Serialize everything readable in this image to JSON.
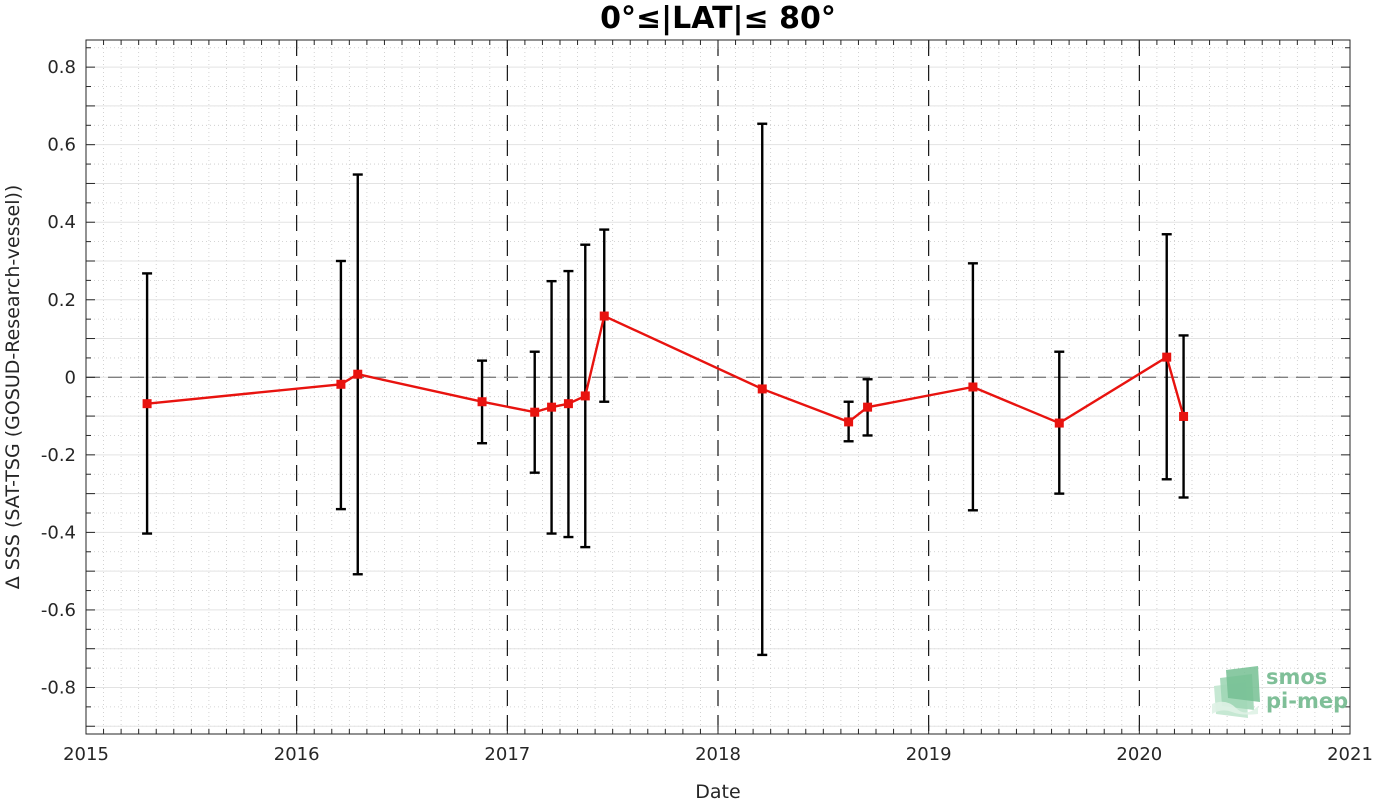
{
  "chart_data": {
    "type": "line",
    "title": "0°≤|LAT|≤ 80°",
    "xlabel": "Date",
    "ylabel": "Δ SSS (SAT-TSG (GOSUD-Research-vessel))",
    "xlim": [
      2015,
      2021
    ],
    "ylim": [
      -0.92,
      0.87
    ],
    "xticks": [
      "2015",
      "2016",
      "2017",
      "2018",
      "2019",
      "2020",
      "2021"
    ],
    "yticks": [
      "0.8",
      "0.6",
      "0.4",
      "0.2",
      "0",
      "-0.2",
      "-0.4",
      "-0.6",
      "-0.8"
    ],
    "grid": true,
    "reference_line": 0,
    "year_separators": [
      2016,
      2017,
      2018,
      2019,
      2020
    ],
    "series": [
      {
        "color": "#e8130f",
        "errorbar_color": "#000000",
        "points": [
          {
            "x": 2015.29,
            "y": -0.068,
            "lo": -0.403,
            "hi": 0.268
          },
          {
            "x": 2016.21,
            "y": -0.018,
            "lo": -0.34,
            "hi": 0.3
          },
          {
            "x": 2016.29,
            "y": 0.008,
            "lo": -0.508,
            "hi": 0.523
          },
          {
            "x": 2016.88,
            "y": -0.063,
            "lo": -0.17,
            "hi": 0.043
          },
          {
            "x": 2017.13,
            "y": -0.09,
            "lo": -0.246,
            "hi": 0.066
          },
          {
            "x": 2017.21,
            "y": -0.077,
            "lo": -0.403,
            "hi": 0.248
          },
          {
            "x": 2017.29,
            "y": -0.068,
            "lo": -0.412,
            "hi": 0.274
          },
          {
            "x": 2017.37,
            "y": -0.048,
            "lo": -0.438,
            "hi": 0.342
          },
          {
            "x": 2017.46,
            "y": 0.158,
            "lo": -0.063,
            "hi": 0.381
          },
          {
            "x": 2018.21,
            "y": -0.03,
            "lo": -0.716,
            "hi": 0.654
          },
          {
            "x": 2018.62,
            "y": -0.115,
            "lo": -0.165,
            "hi": -0.063
          },
          {
            "x": 2018.71,
            "y": -0.077,
            "lo": -0.15,
            "hi": -0.005
          },
          {
            "x": 2019.21,
            "y": -0.025,
            "lo": -0.343,
            "hi": 0.294
          },
          {
            "x": 2019.62,
            "y": -0.118,
            "lo": -0.3,
            "hi": 0.066
          },
          {
            "x": 2020.13,
            "y": 0.052,
            "lo": -0.263,
            "hi": 0.369
          },
          {
            "x": 2020.21,
            "y": -0.101,
            "lo": -0.31,
            "hi": 0.108
          }
        ]
      }
    ]
  },
  "logo": {
    "line1": "smos",
    "line2": "pi-mep"
  }
}
